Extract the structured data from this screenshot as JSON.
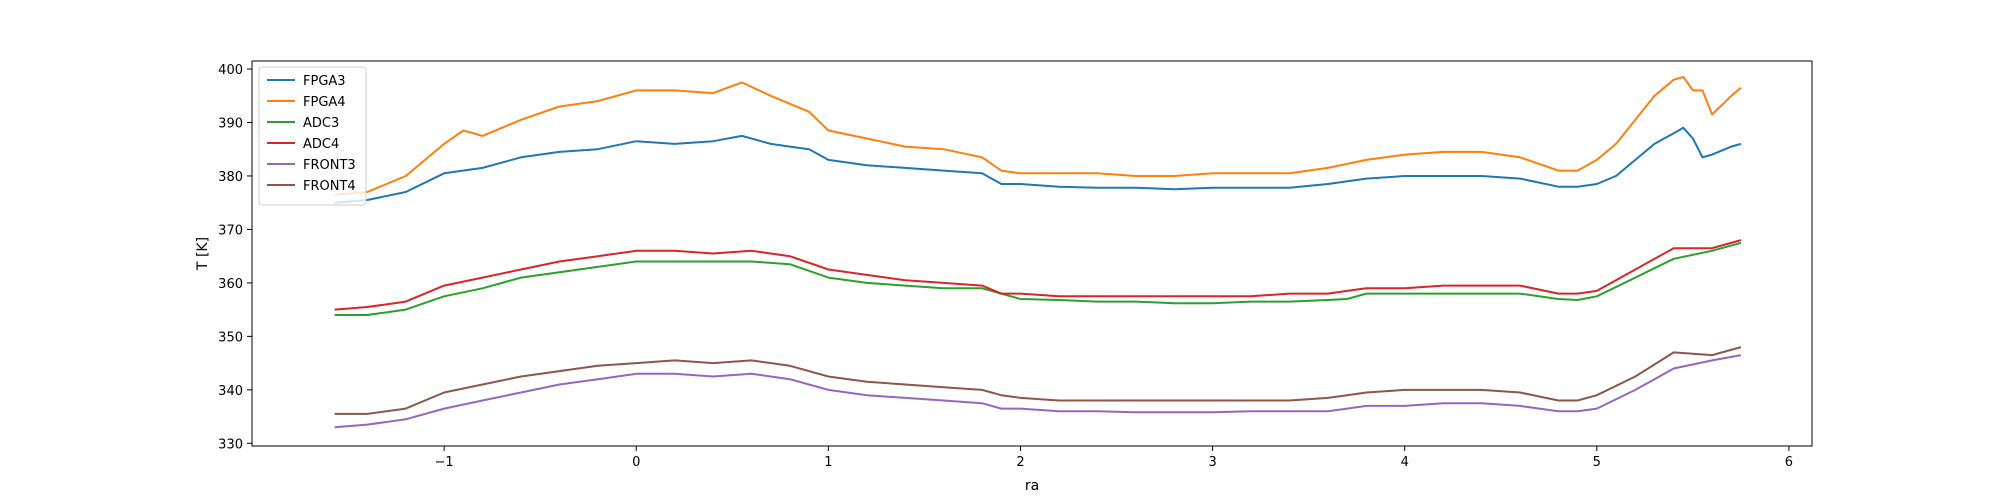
{
  "chart_data": {
    "type": "line",
    "title": "",
    "xlabel": "ra",
    "ylabel": "T [K]",
    "xlim": [
      -2.0,
      6.12
    ],
    "ylim": [
      329.5,
      401.5
    ],
    "xticks": [
      -1,
      0,
      1,
      2,
      3,
      4,
      5,
      6
    ],
    "yticks": [
      330,
      340,
      350,
      360,
      370,
      380,
      390,
      400
    ],
    "xtick_labels": [
      "−1",
      "0",
      "1",
      "2",
      "3",
      "4",
      "5",
      "6"
    ],
    "ytick_labels": [
      "330",
      "340",
      "350",
      "360",
      "370",
      "380",
      "390",
      "400"
    ],
    "grid": false,
    "legend_position": "top-left",
    "series": [
      {
        "name": "FPGA3",
        "color": "#1f77b4",
        "x": [
          -1.57,
          -1.4,
          -1.2,
          -1.0,
          -0.8,
          -0.6,
          -0.4,
          -0.2,
          0.0,
          0.2,
          0.4,
          0.55,
          0.7,
          0.8,
          0.9,
          1.0,
          1.2,
          1.4,
          1.6,
          1.8,
          1.9,
          2.0,
          2.2,
          2.4,
          2.6,
          2.8,
          3.0,
          3.2,
          3.4,
          3.6,
          3.8,
          4.0,
          4.2,
          4.4,
          4.6,
          4.8,
          4.9,
          5.0,
          5.1,
          5.2,
          5.3,
          5.4,
          5.45,
          5.5,
          5.55,
          5.6,
          5.7,
          5.75
        ],
        "y": [
          375,
          375.5,
          377,
          380.5,
          381.5,
          383.5,
          384.5,
          385,
          386.5,
          386,
          386.5,
          387.5,
          386,
          385.5,
          385,
          383,
          382,
          381.5,
          381,
          380.5,
          378.5,
          378.5,
          378,
          377.8,
          377.8,
          377.5,
          377.8,
          377.8,
          377.8,
          378.5,
          379.5,
          380,
          380,
          380,
          379.5,
          378,
          378,
          378.5,
          380,
          383,
          386,
          388,
          389,
          387,
          383.5,
          384,
          385.5,
          386
        ]
      },
      {
        "name": "FPGA4",
        "color": "#ff7f0e",
        "x": [
          -1.57,
          -1.4,
          -1.2,
          -1.0,
          -0.9,
          -0.8,
          -0.6,
          -0.4,
          -0.2,
          0.0,
          0.2,
          0.4,
          0.55,
          0.7,
          0.8,
          0.9,
          1.0,
          1.2,
          1.4,
          1.6,
          1.8,
          1.9,
          2.0,
          2.2,
          2.4,
          2.6,
          2.8,
          3.0,
          3.2,
          3.4,
          3.6,
          3.8,
          4.0,
          4.2,
          4.4,
          4.6,
          4.8,
          4.9,
          5.0,
          5.1,
          5.2,
          5.3,
          5.4,
          5.45,
          5.5,
          5.55,
          5.6,
          5.7,
          5.75
        ],
        "y": [
          376.5,
          377,
          380,
          386,
          388.5,
          387.5,
          390.5,
          393,
          394,
          396,
          396,
          395.5,
          397.5,
          395,
          393.5,
          392,
          388.5,
          387,
          385.5,
          385,
          383.5,
          381,
          380.5,
          380.5,
          380.5,
          380,
          380,
          380.5,
          380.5,
          380.5,
          381.5,
          383,
          384,
          384.5,
          384.5,
          383.5,
          381,
          381,
          383,
          386,
          390.5,
          395,
          398,
          398.5,
          396,
          396,
          391.5,
          395,
          396.5
        ]
      },
      {
        "name": "ADC3",
        "color": "#2ca02c",
        "x": [
          -1.57,
          -1.4,
          -1.2,
          -1.0,
          -0.8,
          -0.6,
          -0.4,
          -0.2,
          0.0,
          0.2,
          0.4,
          0.6,
          0.8,
          1.0,
          1.2,
          1.4,
          1.6,
          1.8,
          1.9,
          2.0,
          2.2,
          2.4,
          2.6,
          2.8,
          3.0,
          3.2,
          3.4,
          3.6,
          3.7,
          3.8,
          4.0,
          4.2,
          4.4,
          4.6,
          4.8,
          4.9,
          5.0,
          5.2,
          5.4,
          5.6,
          5.75
        ],
        "y": [
          354,
          354,
          355,
          357.5,
          359,
          361,
          362,
          363,
          364,
          364,
          364,
          364,
          363.5,
          361,
          360,
          359.5,
          359,
          359,
          358,
          357,
          356.8,
          356.5,
          356.5,
          356.2,
          356.2,
          356.5,
          356.5,
          356.8,
          357,
          358,
          358,
          358,
          358,
          358,
          357,
          356.8,
          357.5,
          361,
          364.5,
          366,
          367.5
        ]
      },
      {
        "name": "ADC4",
        "color": "#d62728",
        "x": [
          -1.57,
          -1.4,
          -1.2,
          -1.0,
          -0.8,
          -0.6,
          -0.4,
          -0.2,
          0.0,
          0.2,
          0.4,
          0.6,
          0.8,
          1.0,
          1.2,
          1.4,
          1.6,
          1.8,
          1.9,
          2.0,
          2.2,
          2.4,
          2.6,
          2.8,
          3.0,
          3.2,
          3.4,
          3.6,
          3.7,
          3.8,
          4.0,
          4.2,
          4.4,
          4.6,
          4.8,
          4.9,
          5.0,
          5.2,
          5.4,
          5.6,
          5.75
        ],
        "y": [
          355,
          355.5,
          356.5,
          359.5,
          361,
          362.5,
          364,
          365,
          366,
          366,
          365.5,
          366,
          365,
          362.5,
          361.5,
          360.5,
          360,
          359.5,
          358,
          358,
          357.5,
          357.5,
          357.5,
          357.5,
          357.5,
          357.5,
          358,
          358,
          358.5,
          359,
          359,
          359.5,
          359.5,
          359.5,
          358,
          358,
          358.5,
          362.5,
          366.5,
          366.5,
          368
        ]
      },
      {
        "name": "FRONT3",
        "color": "#9467bd",
        "x": [
          -1.57,
          -1.4,
          -1.2,
          -1.0,
          -0.8,
          -0.6,
          -0.4,
          -0.2,
          0.0,
          0.2,
          0.4,
          0.6,
          0.8,
          1.0,
          1.2,
          1.4,
          1.6,
          1.8,
          1.9,
          2.0,
          2.2,
          2.4,
          2.6,
          2.8,
          3.0,
          3.2,
          3.4,
          3.6,
          3.7,
          3.8,
          4.0,
          4.2,
          4.4,
          4.6,
          4.8,
          4.9,
          5.0,
          5.2,
          5.4,
          5.6,
          5.75
        ],
        "y": [
          333,
          333.5,
          334.5,
          336.5,
          338,
          339.5,
          341,
          342,
          343,
          343,
          342.5,
          343,
          342,
          340,
          339,
          338.5,
          338,
          337.5,
          336.5,
          336.5,
          336,
          336,
          335.8,
          335.8,
          335.8,
          336,
          336,
          336,
          336.5,
          337,
          337,
          337.5,
          337.5,
          337,
          336,
          336,
          336.5,
          340,
          344,
          345.5,
          346.5
        ]
      },
      {
        "name": "FRONT4",
        "color": "#8c564b",
        "x": [
          -1.57,
          -1.4,
          -1.2,
          -1.0,
          -0.8,
          -0.6,
          -0.4,
          -0.2,
          0.0,
          0.2,
          0.4,
          0.6,
          0.8,
          1.0,
          1.2,
          1.4,
          1.6,
          1.8,
          1.9,
          2.0,
          2.2,
          2.4,
          2.6,
          2.8,
          3.0,
          3.2,
          3.4,
          3.6,
          3.7,
          3.8,
          4.0,
          4.2,
          4.4,
          4.6,
          4.8,
          4.9,
          5.0,
          5.2,
          5.4,
          5.6,
          5.75
        ],
        "y": [
          335.5,
          335.5,
          336.5,
          339.5,
          341,
          342.5,
          343.5,
          344.5,
          345,
          345.5,
          345,
          345.5,
          344.5,
          342.5,
          341.5,
          341,
          340.5,
          340,
          339,
          338.5,
          338,
          338,
          338,
          338,
          338,
          338,
          338,
          338.5,
          339,
          339.5,
          340,
          340,
          340,
          339.5,
          338,
          338,
          339,
          342.5,
          347,
          346.5,
          348
        ]
      }
    ]
  }
}
